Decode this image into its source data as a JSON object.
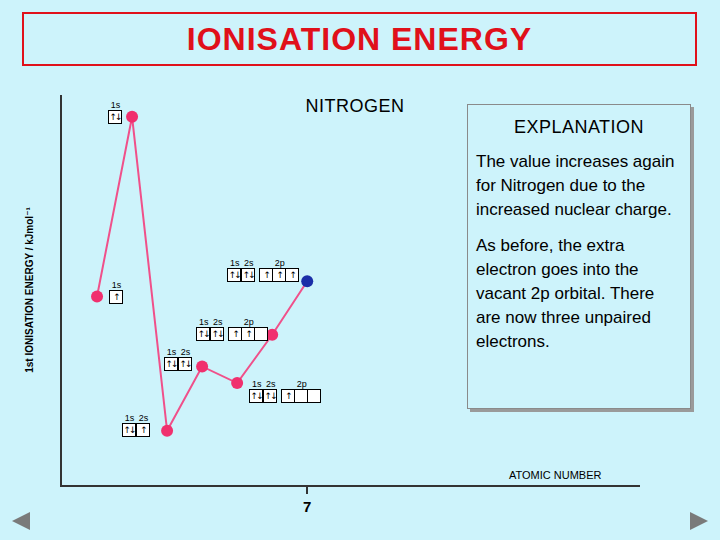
{
  "chart_data": {
    "type": "line",
    "title": "IONISATION ENERGY",
    "xlabel": "ATOMIC NUMBER",
    "ylabel": "1st IONISATION ENERGY / kJmol⁻¹",
    "x": [
      1,
      2,
      3,
      4,
      5,
      6,
      7
    ],
    "values": [
      1312,
      2372,
      520,
      899,
      801,
      1086,
      1402
    ],
    "color": "#f0508a",
    "colors": [
      "#f0306e",
      "#f0306e",
      "#f0306e",
      "#f0306e",
      "#f0306e",
      "#f0306e",
      "#1a2ea8"
    ],
    "marker": "circle",
    "xlim": [
      0,
      16.5
    ],
    "xticks": [
      7
    ],
    "ylim": [
      200,
      2500
    ],
    "yticks": [],
    "tick_labels": "x",
    "grid": false,
    "orbitals": [
      [
        {
          "label": "1s",
          "boxes": [
            "↑"
          ]
        }
      ],
      [
        {
          "label": "1s",
          "boxes": [
            "↑↓"
          ]
        }
      ],
      [
        {
          "label": "1s",
          "boxes": [
            "↑↓"
          ]
        },
        {
          "label": "2s",
          "boxes": [
            "↑"
          ]
        }
      ],
      [
        {
          "label": "1s",
          "boxes": [
            "↑↓"
          ]
        },
        {
          "label": "2s",
          "boxes": [
            "↑↓"
          ]
        }
      ],
      [
        {
          "label": "1s",
          "boxes": [
            "↑↓"
          ]
        },
        {
          "label": "2s",
          "boxes": [
            "↑↓"
          ]
        },
        {
          "label": "2p",
          "boxes": [
            "↑",
            "",
            ""
          ]
        }
      ],
      [
        {
          "label": "1s",
          "boxes": [
            "↑↓"
          ]
        },
        {
          "label": "2s",
          "boxes": [
            "↑↓"
          ]
        },
        {
          "label": "2p",
          "boxes": [
            "↑",
            "↑",
            ""
          ]
        }
      ],
      [
        {
          "label": "1s",
          "boxes": [
            "↑↓"
          ]
        },
        {
          "label": "2s",
          "boxes": [
            "↑↓"
          ]
        },
        {
          "label": "2p",
          "boxes": [
            "↑",
            "↑",
            "↑"
          ]
        }
      ]
    ],
    "annotations": [
      {
        "text": "NITROGEN"
      }
    ],
    "explanation": {
      "heading": "EXPLANATION",
      "paragraphs": [
        "The value increases again for Nitrogen due to the increased nuclear charge.",
        "As before, the extra electron goes into the vacant 2p orbital. There are now three unpaired electrons."
      ]
    }
  }
}
